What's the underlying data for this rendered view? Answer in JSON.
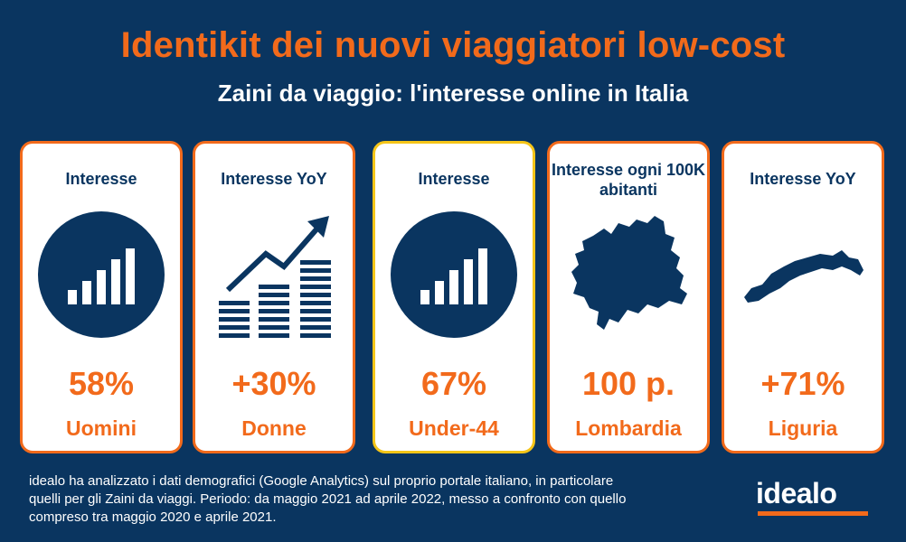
{
  "header": {
    "title": "Identikit dei nuovi viaggiatori low-cost",
    "subtitle": "Zaini da viaggio: l'interesse online in Italia"
  },
  "cards": [
    {
      "label": "Interesse",
      "icon": "bar-chart-circle-icon",
      "value": "58%",
      "segment": "Uomini"
    },
    {
      "label": "Interesse YoY",
      "icon": "growth-coins-icon",
      "value": "+30%",
      "segment": "Donne"
    },
    {
      "label": "Interesse",
      "icon": "bar-chart-circle-icon",
      "value": "67%",
      "segment": "Under-44"
    },
    {
      "label": "Interesse ogni 100K abitanti",
      "icon": "lombardia-map-icon",
      "value": "100 p.",
      "segment": "Lombardia"
    },
    {
      "label": "Interesse YoY",
      "icon": "liguria-map-icon",
      "value": "+71%",
      "segment": "Liguria"
    }
  ],
  "footnote": "idealo ha analizzato i dati demografici (Google Analytics) sul proprio portale italiano, in particolare quelli per gli Zaini da viaggi. Periodo: da maggio 2021 ad aprile 2022, messo a confronto con quello compreso tra maggio 2020 e aprile 2021.",
  "logo": {
    "text": "idealo"
  },
  "colors": {
    "background": "#0a3560",
    "accent": "#f26a1b",
    "highlight_border": "#f5c518",
    "card": "#ffffff"
  }
}
